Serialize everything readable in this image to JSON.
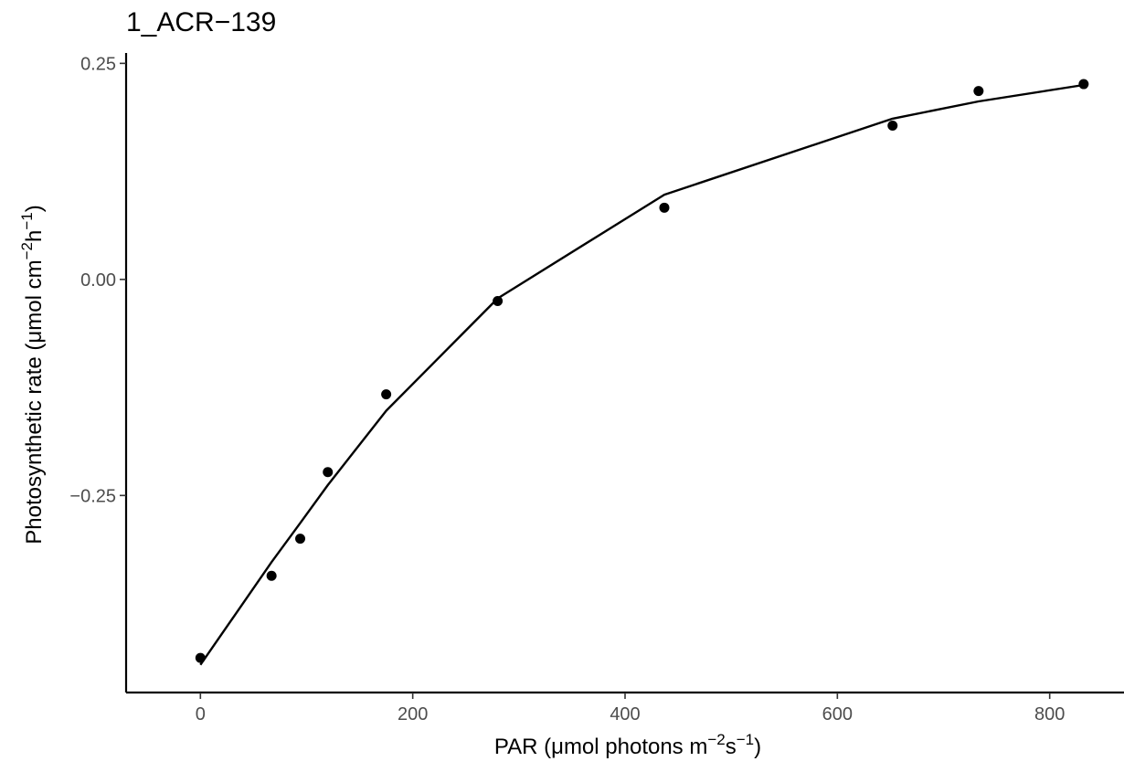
{
  "chart_data": {
    "type": "scatter",
    "title": "1_ACR−139",
    "xlabel": {
      "prefix": "PAR (",
      "mu": "μ",
      "mid": "mol photons m",
      "sup1": "−2",
      "mid2": "s",
      "sup2": "−1",
      "suffix": ")"
    },
    "ylabel": {
      "prefix": "Photosynthetic rate (",
      "mu": "μ",
      "mid": "mol cm",
      "sup1": "−2",
      "mid2": "h",
      "sup2": "−1",
      "suffix": ")"
    },
    "xlim": [
      -70,
      870
    ],
    "ylim": [
      -0.478,
      0.262
    ],
    "x_ticks": [
      0,
      200,
      400,
      600,
      800
    ],
    "x_tick_labels": [
      "0",
      "200",
      "400",
      "600",
      "800"
    ],
    "y_ticks": [
      0.25,
      0.0,
      -0.25
    ],
    "y_tick_labels": [
      "0.25",
      "0.00",
      "−0.25"
    ],
    "grid": false,
    "series": [
      {
        "kind": "points",
        "x": [
          0,
          67,
          94,
          120,
          175,
          280,
          437,
          652,
          733,
          832
        ],
        "y": [
          -0.438,
          -0.343,
          -0.3,
          -0.223,
          -0.133,
          -0.025,
          0.083,
          0.178,
          0.218,
          0.226
        ]
      },
      {
        "kind": "fitted-line",
        "x": [
          0,
          67,
          94,
          120,
          175,
          280,
          437,
          652,
          733,
          832
        ],
        "y": [
          -0.446,
          -0.327,
          -0.282,
          -0.238,
          -0.152,
          -0.022,
          0.098,
          0.186,
          0.206,
          0.225
        ]
      }
    ]
  }
}
